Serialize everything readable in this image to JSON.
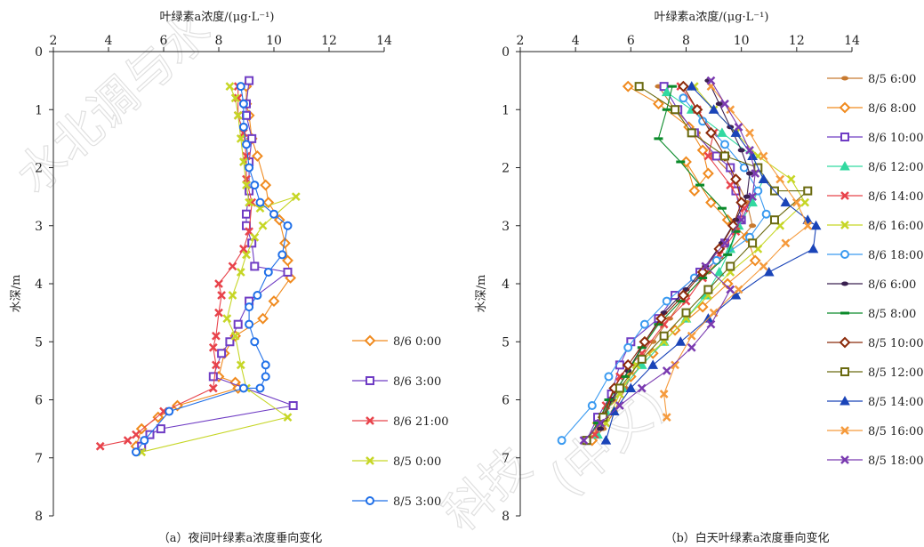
{
  "watermark": {
    "left": "水北调与水",
    "right_a": "科技",
    "right_b": "(中文)"
  },
  "colors": {
    "night": [
      "#f08a1e",
      "#6f3cc4",
      "#e8434b",
      "#c6d626",
      "#1f6fe8"
    ],
    "day": [
      "#c87a30",
      "#f08a1e",
      "#6f3cc4",
      "#32d9a0",
      "#e8434b",
      "#c6d626",
      "#3a9af0",
      "#3a2050",
      "#0a8a2a",
      "#8b2a0a",
      "#6a6a10",
      "#1a44b8",
      "#f59a3c",
      "#7a3ab0"
    ],
    "day_markers": [
      "dot-dark",
      "diamond-red",
      "square-purple",
      "triangle-green",
      "x-red",
      "x-lime",
      "circle-blue",
      "dot-dark",
      "dash-green",
      "diamond-darkred",
      "square-olive",
      "triangle-blue",
      "x-orange",
      "x-purple"
    ]
  },
  "chart_data": [
    {
      "type": "line",
      "caption": "（a）夜间叶绿素a浓度垂向变化",
      "xlabel": "叶绿素a浓度/(μg·L⁻¹)",
      "ylabel": "水深/m",
      "xlim": [
        2,
        14
      ],
      "ylim": [
        8,
        0
      ],
      "x_ticks": [
        "2",
        "4",
        "6",
        "8",
        "10",
        "12",
        "14"
      ],
      "y_ticks": [
        "0",
        "1",
        "2",
        "3",
        "4",
        "5",
        "6",
        "7",
        "8"
      ],
      "orientation": "depth-profile",
      "legend_position": "right",
      "series": [
        {
          "name": "8/6 0:00",
          "marker": "diamond",
          "x": [
            9.0,
            9.0,
            9.1,
            9.2,
            9.4,
            9.7,
            9.8,
            10.2,
            10.4,
            10.5,
            10.6,
            10.0,
            9.6,
            8.6,
            8.2,
            8.0,
            8.6,
            8.7,
            6.5,
            5.8,
            5.2,
            5.0
          ],
          "y": [
            0.6,
            0.9,
            1.1,
            1.5,
            1.8,
            2.3,
            2.6,
            2.9,
            3.3,
            3.6,
            3.9,
            4.3,
            4.6,
            4.9,
            5.2,
            5.6,
            5.7,
            5.8,
            6.1,
            6.3,
            6.5,
            6.8
          ]
        },
        {
          "name": "8/6 3:00",
          "marker": "square",
          "x": [
            9.1,
            9.0,
            9.0,
            9.2,
            9.1,
            9.1,
            9.0,
            9.0,
            9.2,
            9.3,
            10.5,
            9.1,
            8.7,
            8.4,
            8.1,
            7.8,
            10.7,
            5.9,
            5.5,
            5.2
          ],
          "y": [
            0.5,
            0.9,
            1.1,
            1.5,
            1.9,
            2.4,
            2.8,
            3.0,
            3.3,
            3.7,
            3.8,
            4.3,
            4.7,
            5.0,
            5.2,
            5.6,
            6.1,
            6.5,
            6.6,
            6.8
          ]
        },
        {
          "name": "8/6 21:00",
          "marker": "x",
          "x": [
            8.7,
            8.7,
            8.7,
            8.9,
            9.0,
            9.0,
            9.2,
            9.1,
            8.9,
            8.5,
            8.0,
            8.1,
            8.0,
            7.9,
            7.8,
            7.9,
            7.8,
            6.0,
            5.0,
            4.7,
            3.7
          ],
          "y": [
            0.6,
            0.8,
            1.1,
            1.4,
            1.8,
            2.2,
            2.6,
            3.1,
            3.4,
            3.7,
            4.0,
            4.2,
            4.5,
            4.9,
            5.1,
            5.4,
            5.8,
            6.2,
            6.6,
            6.7,
            6.8
          ]
        },
        {
          "name": "8/5 0:00",
          "marker": "x",
          "x": [
            8.4,
            8.6,
            8.7,
            8.8,
            8.9,
            9.0,
            9.1,
            9.5,
            10.8,
            9.6,
            9.3,
            9.0,
            8.8,
            8.5,
            8.3,
            8.6,
            8.8,
            9.0,
            10.5,
            5.2
          ],
          "y": [
            0.6,
            0.8,
            1.1,
            1.5,
            1.9,
            2.3,
            2.6,
            2.7,
            2.5,
            3.0,
            3.2,
            3.5,
            3.8,
            4.2,
            4.6,
            4.9,
            5.4,
            5.8,
            6.3,
            6.9
          ]
        },
        {
          "name": "8/5 3:00",
          "marker": "circle",
          "x": [
            8.8,
            8.9,
            8.9,
            9.0,
            9.1,
            9.3,
            9.5,
            10.0,
            10.5,
            10.3,
            9.8,
            9.4,
            9.1,
            9.1,
            9.3,
            9.7,
            9.7,
            9.5,
            8.9,
            6.2,
            5.3,
            5.0
          ],
          "y": [
            0.6,
            0.9,
            1.3,
            1.6,
            2.0,
            2.3,
            2.6,
            2.8,
            3.0,
            3.5,
            3.8,
            4.2,
            4.4,
            4.7,
            5.0,
            5.4,
            5.6,
            5.8,
            5.8,
            6.2,
            6.7,
            6.9
          ]
        }
      ]
    },
    {
      "type": "line",
      "caption": "（b）白天叶绿素a浓度垂向变化",
      "xlabel": "叶绿素a浓度/(μg·L⁻¹)",
      "ylabel": "水深/m",
      "xlim": [
        2,
        14
      ],
      "ylim": [
        8,
        0
      ],
      "x_ticks": [
        "2",
        "4",
        "6",
        "8",
        "10",
        "12",
        "14"
      ],
      "y_ticks": [
        "0",
        "1",
        "2",
        "3",
        "4",
        "5",
        "6",
        "7",
        "8"
      ],
      "orientation": "depth-profile",
      "legend_position": "right",
      "series": [
        {
          "name": "8/5 6:00",
          "x": [
            7.0,
            7.6,
            8.4,
            9.0,
            9.8,
            10.2,
            10.4,
            9.6,
            8.8,
            8.0,
            7.4,
            6.8,
            6.2,
            5.8,
            5.4,
            5.0,
            4.6
          ],
          "y": [
            0.6,
            1.0,
            1.4,
            1.8,
            2.2,
            2.6,
            3.0,
            3.4,
            3.8,
            4.2,
            4.6,
            5.0,
            5.4,
            5.8,
            6.2,
            6.5,
            6.7
          ]
        },
        {
          "name": "8/6 8:00",
          "x": [
            5.9,
            7.0,
            8.1,
            8.6,
            8.8,
            8.3,
            8.0,
            8.9,
            9.5,
            10.2,
            10.5,
            9.5,
            8.6,
            7.6,
            6.8,
            6.0,
            5.3,
            4.8,
            4.6
          ],
          "y": [
            0.6,
            0.9,
            1.3,
            1.7,
            2.1,
            2.4,
            1.9,
            2.6,
            2.9,
            3.2,
            3.6,
            4.0,
            4.4,
            4.8,
            5.2,
            5.6,
            6.0,
            6.4,
            6.7
          ]
        },
        {
          "name": "8/6 10:00",
          "x": [
            7.2,
            7.7,
            8.3,
            9.1,
            9.6,
            9.8,
            10.0,
            9.4,
            8.5,
            7.6,
            7.0,
            6.0,
            5.6,
            5.3,
            4.8,
            4.4
          ],
          "y": [
            0.6,
            1.0,
            1.4,
            1.8,
            2.0,
            2.4,
            2.9,
            3.3,
            3.8,
            4.2,
            4.6,
            5.0,
            5.4,
            5.9,
            6.3,
            6.7
          ]
        },
        {
          "name": "8/6 12:00",
          "x": [
            7.3,
            8.2,
            9.3,
            10.4,
            10.8,
            10.4,
            9.9,
            9.6,
            9.2,
            8.7,
            8.0,
            7.2,
            6.4,
            5.7,
            5.1,
            4.8
          ],
          "y": [
            0.7,
            1.0,
            1.4,
            1.8,
            2.2,
            2.6,
            3.0,
            3.4,
            3.8,
            4.2,
            4.6,
            5.0,
            5.4,
            5.8,
            6.2,
            6.6
          ]
        },
        {
          "name": "8/6 14:00",
          "x": [
            7.8,
            8.4,
            9.0,
            8.8,
            9.6,
            10.1,
            9.8,
            9.2,
            8.6,
            8.0,
            7.2,
            6.4,
            5.6,
            5.1,
            4.7
          ],
          "y": [
            0.6,
            1.0,
            1.4,
            1.8,
            2.3,
            2.7,
            3.1,
            3.5,
            3.9,
            4.3,
            4.7,
            5.2,
            5.6,
            6.1,
            6.6
          ]
        },
        {
          "name": "8/6 16:00",
          "x": [
            8.3,
            9.0,
            9.8,
            10.6,
            11.8,
            12.3,
            11.4,
            10.6,
            9.6,
            8.8,
            8.0,
            7.2,
            6.2,
            5.6,
            5.1
          ],
          "y": [
            0.6,
            1.0,
            1.4,
            1.8,
            2.2,
            2.6,
            3.0,
            3.4,
            3.8,
            4.2,
            4.6,
            5.0,
            5.4,
            5.9,
            6.4
          ]
        },
        {
          "name": "8/6 18:00",
          "x": [
            7.9,
            8.6,
            9.4,
            10.1,
            10.6,
            10.9,
            10.3,
            9.1,
            8.3,
            7.3,
            6.5,
            5.9,
            5.2,
            4.6,
            3.5
          ],
          "y": [
            0.8,
            1.2,
            1.6,
            2.0,
            2.4,
            2.8,
            3.2,
            3.6,
            3.9,
            4.3,
            4.7,
            5.1,
            5.6,
            6.1,
            6.7
          ]
        },
        {
          "name": "8/6 6:00",
          "x": [
            8.8,
            9.2,
            9.6,
            10.0,
            10.3,
            10.2,
            9.8,
            9.3,
            8.7,
            8.0,
            7.2,
            6.5,
            5.9,
            5.3,
            4.9
          ],
          "y": [
            0.5,
            0.9,
            1.3,
            1.7,
            2.1,
            2.5,
            2.9,
            3.3,
            3.7,
            4.1,
            4.5,
            5.0,
            5.5,
            6.0,
            6.5
          ]
        },
        {
          "name": "8/5 8:00",
          "x": [
            7.5,
            7.3,
            7.0,
            7.8,
            8.5,
            9.3,
            9.8,
            9.5,
            8.6,
            7.8,
            7.0,
            6.4,
            5.8,
            5.2,
            4.8,
            4.4
          ],
          "y": [
            0.6,
            1.0,
            1.5,
            1.9,
            2.3,
            2.7,
            3.1,
            3.5,
            3.9,
            4.3,
            4.7,
            5.1,
            5.6,
            6.0,
            6.4,
            6.7
          ]
        },
        {
          "name": "8/5 10:00",
          "x": [
            7.9,
            8.4,
            8.9,
            9.4,
            9.8,
            10.0,
            9.7,
            9.2,
            8.6,
            7.9,
            7.1,
            6.5,
            5.9,
            5.4,
            5.0
          ],
          "y": [
            0.6,
            1.0,
            1.4,
            1.8,
            2.2,
            2.6,
            3.0,
            3.4,
            3.8,
            4.2,
            4.6,
            5.0,
            5.4,
            5.8,
            6.3
          ]
        },
        {
          "name": "8/5 12:00",
          "x": [
            6.3,
            7.6,
            8.2,
            9.4,
            10.6,
            11.2,
            12.4,
            11.2,
            10.4,
            9.6,
            8.8,
            8.0,
            7.2,
            6.4,
            5.6,
            5.0,
            4.4
          ],
          "y": [
            0.6,
            1.0,
            1.4,
            1.8,
            2.0,
            2.4,
            2.4,
            2.9,
            3.3,
            3.7,
            4.1,
            4.5,
            4.9,
            5.3,
            5.8,
            6.3,
            6.7
          ]
        },
        {
          "name": "8/5 14:00",
          "x": [
            8.2,
            9.0,
            9.8,
            10.4,
            10.8,
            11.6,
            12.4,
            12.7,
            12.6,
            11.0,
            9.8,
            8.8,
            7.8,
            6.8,
            6.0,
            5.4,
            5.1
          ],
          "y": [
            0.6,
            1.0,
            1.4,
            1.8,
            2.2,
            2.6,
            2.9,
            3.0,
            3.4,
            3.8,
            4.2,
            4.6,
            5.0,
            5.4,
            5.8,
            6.2,
            6.7
          ]
        },
        {
          "name": "8/5 16:00",
          "x": [
            8.9,
            9.6,
            10.3,
            10.8,
            11.4,
            12.0,
            12.4,
            11.6,
            10.8,
            9.9,
            9.0,
            8.2,
            7.6,
            7.2,
            7.3
          ],
          "y": [
            0.6,
            1.0,
            1.4,
            1.8,
            2.2,
            2.6,
            3.0,
            3.3,
            3.7,
            4.1,
            4.5,
            4.9,
            5.4,
            5.9,
            6.3
          ]
        },
        {
          "name": "8/5 18:00",
          "x": [
            8.9,
            9.4,
            9.9,
            10.3,
            10.5,
            10.4,
            10.0,
            9.4,
            8.7,
            9.6,
            8.9,
            8.2,
            7.3,
            6.4,
            5.6,
            4.9,
            4.3
          ],
          "y": [
            0.5,
            0.9,
            1.3,
            1.7,
            2.1,
            2.5,
            2.9,
            3.3,
            3.7,
            4.1,
            4.7,
            5.1,
            5.5,
            5.8,
            6.1,
            6.4,
            6.7
          ]
        }
      ]
    }
  ]
}
